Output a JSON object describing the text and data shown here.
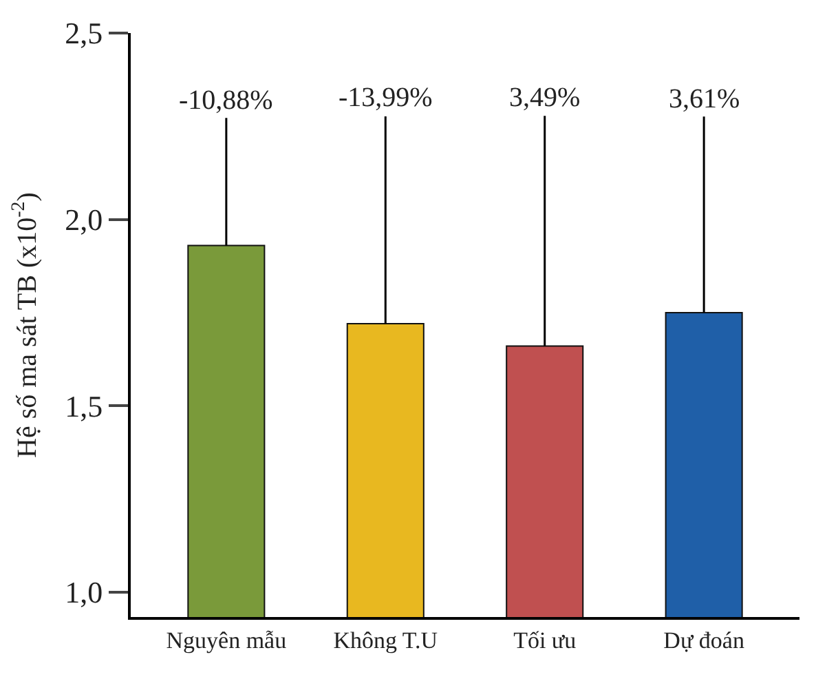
{
  "chart_data": {
    "type": "bar",
    "ylabel": "Hệ số ma sát TB (x10$^{-2}$)",
    "categories": [
      "Nguyên mẫu",
      "Không T.U",
      "Tối ưu",
      "Dự đoán"
    ],
    "values": [
      1.93,
      1.72,
      1.66,
      1.75
    ],
    "colors": [
      "#7a9a3a",
      "#e8b820",
      "#c05050",
      "#1f5fa8"
    ],
    "ylim": [
      0.933,
      2.5
    ],
    "yticks": [
      {
        "value": 1.0,
        "label": "1,0"
      },
      {
        "value": 1.5,
        "label": "1,5"
      },
      {
        "value": 2.0,
        "label": "2,0"
      },
      {
        "value": 2.5,
        "label": "2,5"
      }
    ],
    "annotations": [
      {
        "text": "-10,88%",
        "x": "Nguyên mẫu",
        "y": 1.93
      },
      {
        "text": "-13,99%",
        "x": "Không T.U",
        "y": 1.72
      },
      {
        "text": "3,49%",
        "x": "Tối ưu",
        "y": 1.66
      },
      {
        "text": "3,61%",
        "x": "Dự đoán",
        "y": 1.75
      }
    ]
  }
}
